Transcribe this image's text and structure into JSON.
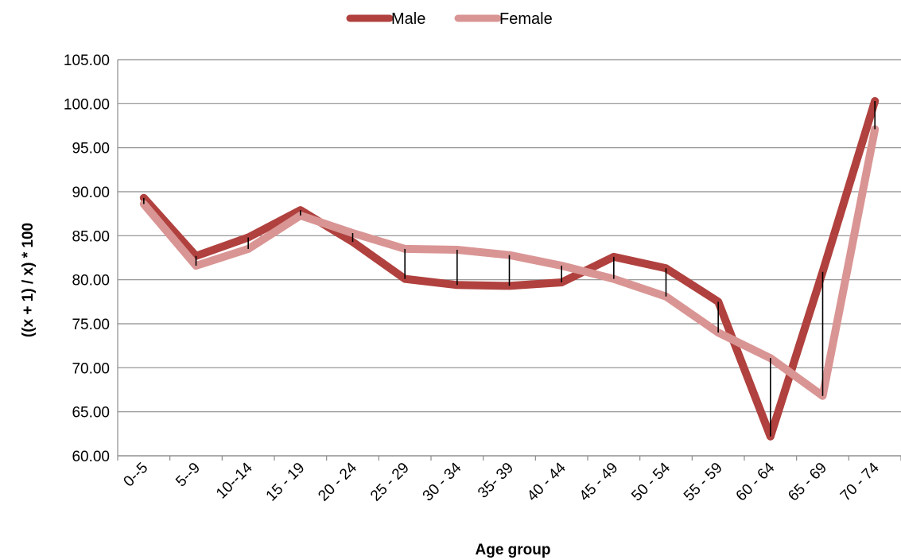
{
  "chart_data": {
    "type": "line",
    "title": "",
    "xlabel": "Age group",
    "ylabel": "((x + 1) / x) * 100",
    "categories": [
      "0--5",
      "5--9",
      "10--14",
      "15 - 19",
      "20 - 24",
      "25 - 29",
      "30 - 34",
      "35- 39",
      "40 - 44",
      "45 - 49",
      "50 - 54",
      "55 - 59",
      "60 - 64",
      "65 - 69",
      "70 - 74"
    ],
    "y_ticks": [
      "60.00",
      "65.00",
      "70.00",
      "75.00",
      "80.00",
      "85.00",
      "90.00",
      "95.00",
      "100.00",
      "105.00"
    ],
    "ylim": [
      60,
      105
    ],
    "grid": true,
    "legend_position": "top",
    "series": [
      {
        "name": "Male",
        "color": "#B0413E",
        "values": [
          89.3,
          82.7,
          84.8,
          87.9,
          84.3,
          80.1,
          79.4,
          79.3,
          79.7,
          82.6,
          81.3,
          77.5,
          62.2,
          80.9,
          100.3
        ]
      },
      {
        "name": "Female",
        "color": "#D99594",
        "values": [
          88.6,
          81.6,
          83.5,
          87.3,
          85.3,
          83.5,
          83.4,
          82.8,
          81.6,
          80.1,
          78.1,
          74.0,
          71.1,
          66.8,
          97.1
        ]
      }
    ]
  }
}
